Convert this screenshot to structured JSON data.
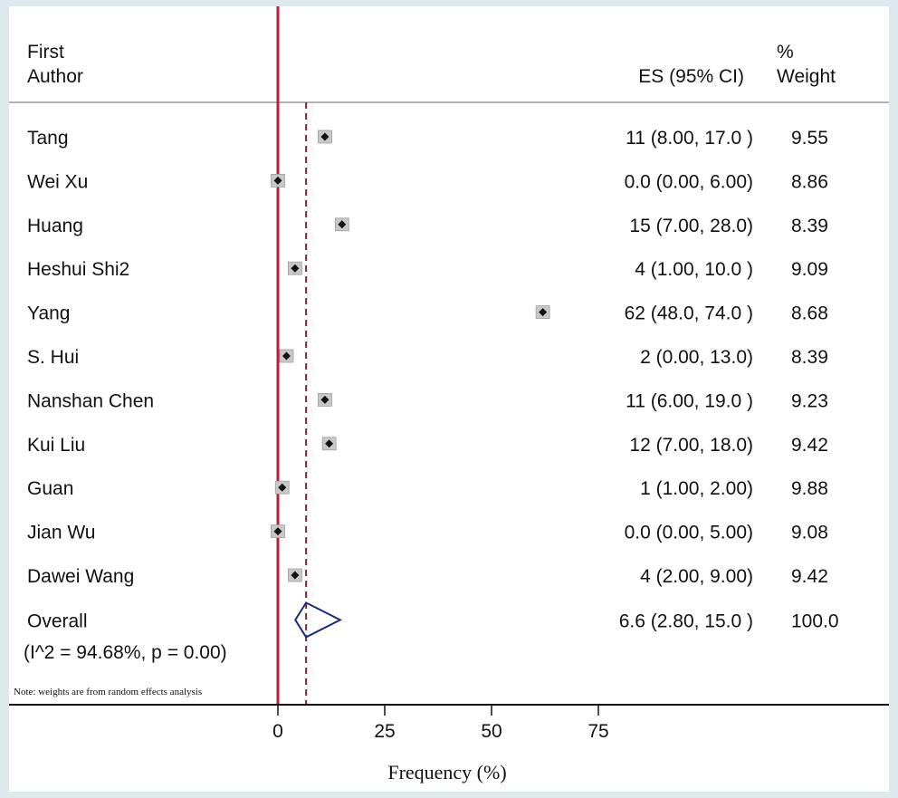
{
  "chart_data": {
    "type": "forest",
    "headers": {
      "author_line1": "First",
      "author_line2": "Author",
      "es": "ES (95% CI)",
      "weight_line1": "%",
      "weight_line2": "Weight"
    },
    "studies": [
      {
        "author": "Tang",
        "es": 11,
        "lo": 8.0,
        "hi": 17.0,
        "es_ci": "11 (8.00, 17.0 )",
        "weight": "9.55"
      },
      {
        "author": "Wei Xu",
        "es": 0.0,
        "lo": 0.0,
        "hi": 6.0,
        "es_ci": "0.0 (0.00, 6.00)",
        "weight": "8.86"
      },
      {
        "author": "Huang",
        "es": 15,
        "lo": 7.0,
        "hi": 28.0,
        "es_ci": "15 (7.00, 28.0)",
        "weight": "8.39"
      },
      {
        "author": "Heshui Shi2",
        "es": 4,
        "lo": 1.0,
        "hi": 10.0,
        "es_ci": "4 (1.00, 10.0 )",
        "weight": "9.09"
      },
      {
        "author": "Yang",
        "es": 62,
        "lo": 48.0,
        "hi": 74.0,
        "es_ci": "62 (48.0, 74.0 )",
        "weight": "8.68"
      },
      {
        "author": "S. Hui",
        "es": 2,
        "lo": 0.0,
        "hi": 13.0,
        "es_ci": "2 (0.00, 13.0)",
        "weight": "8.39"
      },
      {
        "author": "Nanshan Chen",
        "es": 11,
        "lo": 6.0,
        "hi": 19.0,
        "es_ci": "11 (6.00, 19.0 )",
        "weight": "9.23"
      },
      {
        "author": "Kui Liu",
        "es": 12,
        "lo": 7.0,
        "hi": 18.0,
        "es_ci": "12 (7.00, 18.0)",
        "weight": "9.42"
      },
      {
        "author": "Guan",
        "es": 1,
        "lo": 1.0,
        "hi": 2.0,
        "es_ci": "1 (1.00, 2.00)",
        "weight": "9.88"
      },
      {
        "author": "Jian Wu",
        "es": 0.0,
        "lo": 0.0,
        "hi": 5.0,
        "es_ci": "0.0 (0.00, 5.00)",
        "weight": "9.08"
      },
      {
        "author": "Dawei Wang",
        "es": 4,
        "lo": 2.0,
        "hi": 9.0,
        "es_ci": "4 (2.00, 9.00)",
        "weight": "9.42"
      }
    ],
    "overall": {
      "author": "Overall",
      "es": 6.6,
      "lo": 2.8,
      "hi": 15.0,
      "es_ci": "6.6 (2.80, 15.0 )",
      "weight": "100.0"
    },
    "heterogeneity": "(I^2 = 94.68%, p = 0.00)",
    "note": "Note: weights are from random effects analysis",
    "x_ticks": [
      0,
      25,
      50,
      75
    ],
    "x_title": "Frequency (%)",
    "colors": {
      "null_line": "#b5213a",
      "overall_line": "#8a2030",
      "diamond": "#1c2a7a",
      "marker": "#111111",
      "box": "#c8c8c8"
    }
  }
}
